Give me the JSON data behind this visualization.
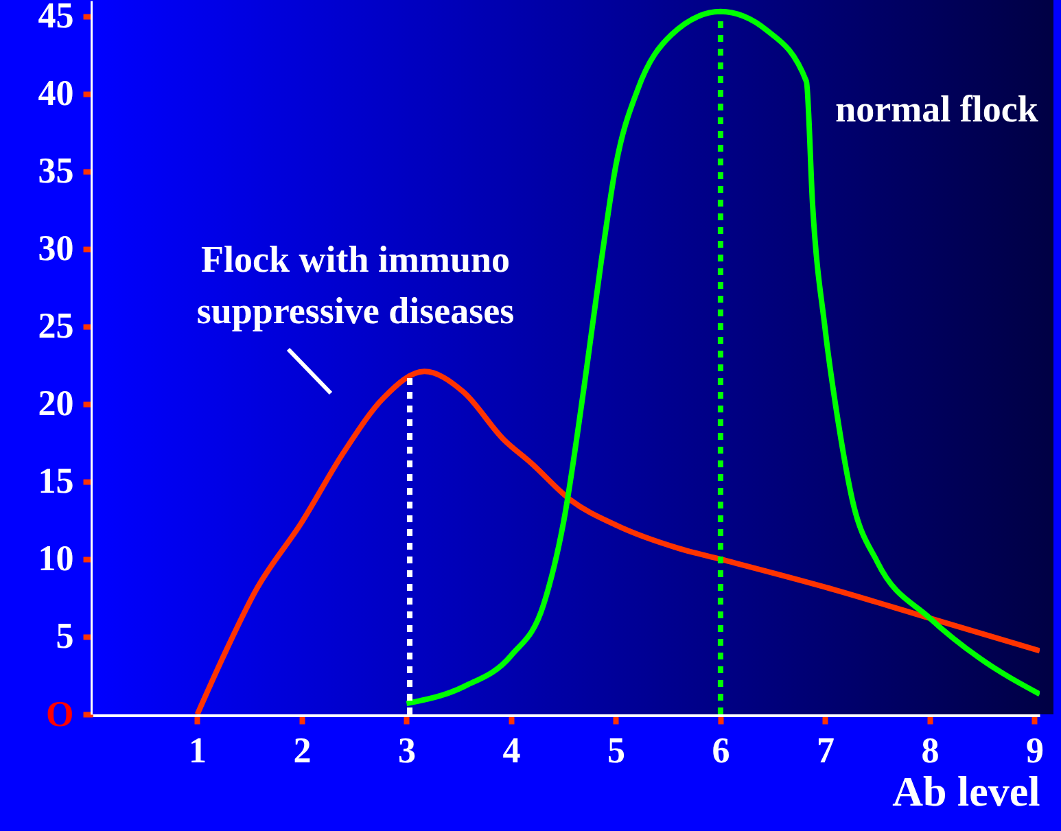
{
  "chart_data": {
    "type": "line",
    "xlabel": "Ab level",
    "xlim": [
      0,
      9.05
    ],
    "ylim": [
      0,
      46
    ],
    "xticks": [
      1,
      2,
      3,
      4,
      5,
      6,
      7,
      8,
      9
    ],
    "yticks": [
      {
        "value": 0,
        "label": "O"
      },
      5,
      10,
      15,
      20,
      25,
      30,
      35,
      40,
      45
    ],
    "grid": false,
    "marker": "none",
    "series": [
      {
        "name": "Flock with immuno suppressive diseases",
        "color": "#ff3300",
        "line_style": "solid",
        "x": [
          1.0,
          1.24,
          1.56,
          2.0,
          2.4,
          2.78,
          3.17,
          3.54,
          3.93,
          4.19,
          4.57,
          5.0,
          5.6,
          6.0,
          7.0,
          8.0,
          9.05
        ],
        "values": [
          0,
          3.6,
          8.0,
          12.4,
          16.9,
          20.4,
          22.1,
          20.8,
          17.7,
          16.2,
          13.8,
          12.2,
          10.7,
          10.0,
          8.2,
          6.2,
          4.1
        ]
      },
      {
        "name": "normal flock",
        "color": "#00ff00",
        "line_style": "solid",
        "x": [
          3.0,
          3.55,
          4.0,
          4.31,
          4.5,
          4.7,
          4.86,
          5.0,
          5.21,
          5.53,
          6.0,
          6.44,
          6.82,
          6.88,
          7.0,
          7.13,
          7.26,
          7.5,
          8.0,
          8.48,
          9.05
        ],
        "values": [
          0.7,
          1.8,
          3.8,
          7.1,
          12.4,
          21.3,
          29.2,
          35.4,
          40.3,
          43.8,
          45.3,
          44.1,
          40.8,
          32.8,
          24.8,
          18.6,
          13.8,
          9.8,
          6.2,
          3.6,
          1.3
        ]
      },
      {
        "color": "#ffffff",
        "line_style": "dotted",
        "x": [
          3.03,
          3.03
        ],
        "values": [
          0,
          21.8
        ]
      },
      {
        "color": "#00ff00",
        "line_style": "dotted",
        "x": [
          6.0,
          6.0
        ],
        "values": [
          0,
          45.3
        ]
      }
    ]
  }
}
